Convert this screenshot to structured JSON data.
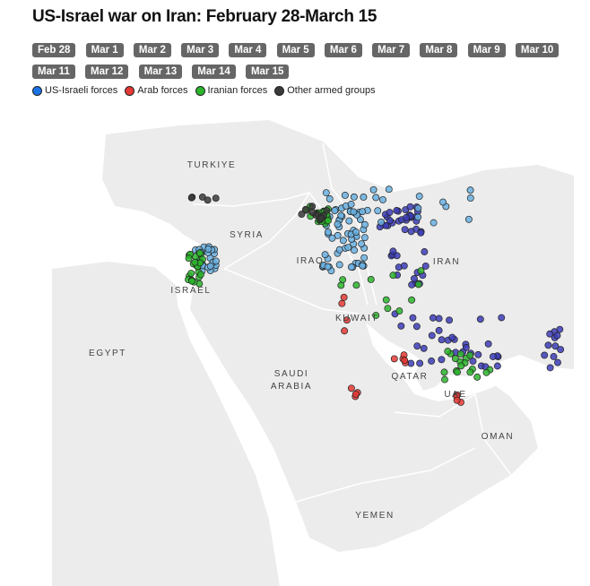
{
  "title": "US-Israel war on Iran: February 28-March 15",
  "dates": [
    "Feb 28",
    "Mar 1",
    "Mar 2",
    "Mar 3",
    "Mar 4",
    "Mar 5",
    "Mar 6",
    "Mar 7",
    "Mar 8",
    "Mar 9",
    "Mar 10",
    "Mar 11",
    "Mar 12",
    "Mar 13",
    "Mar 14",
    "Mar 15"
  ],
  "legend": [
    {
      "label": "US-Israeli forces",
      "color": "#1a73e8"
    },
    {
      "label": "Arab forces",
      "color": "#e53935"
    },
    {
      "label": "Iranian forces",
      "color": "#2bb52b"
    },
    {
      "label": "Other armed groups",
      "color": "#3a3a3a"
    }
  ],
  "map_labels": [
    "TURKIYE",
    "SYRIA",
    "IRAQ",
    "IRAN",
    "ISRAEL",
    "EGYPT",
    "KUWAIT",
    "SAUDI ARABIA",
    "QATAR",
    "UAE",
    "OMAN",
    "YEMEN"
  ]
}
